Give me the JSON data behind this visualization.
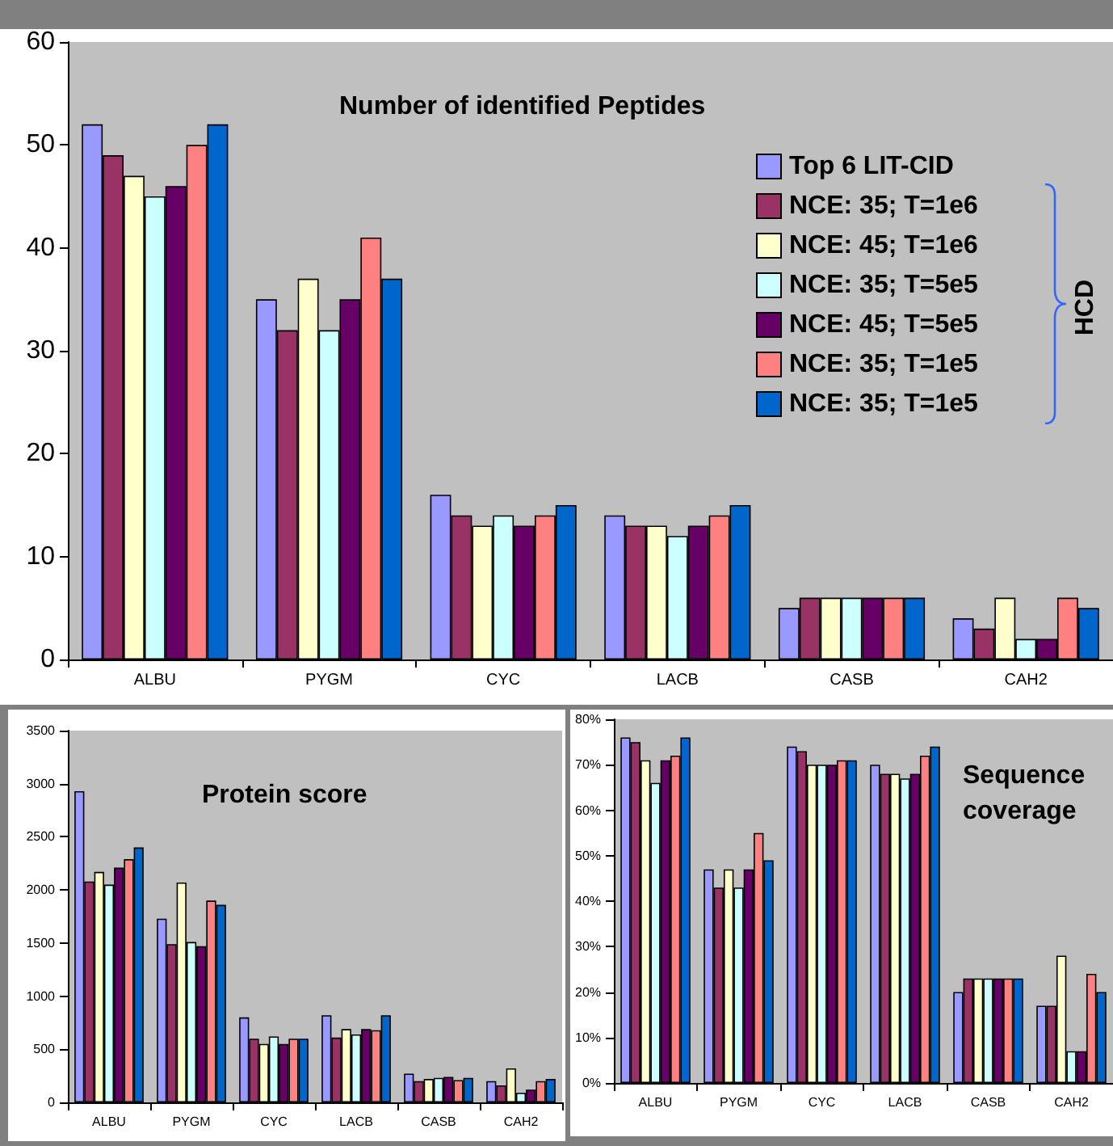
{
  "chart_data": [
    {
      "type": "bar",
      "title": "Number of identified Peptides",
      "categories": [
        "ALBU",
        "PYGM",
        "CYC",
        "LACB",
        "CASB",
        "CAH2"
      ],
      "ylim": [
        0,
        60
      ],
      "yticks": [
        0,
        10,
        20,
        30,
        40,
        50,
        60
      ],
      "grid": false,
      "legend": "top right",
      "annotations": [
        "HCD"
      ],
      "series": [
        {
          "name": "Top 6 LIT-CID",
          "color": "#9999ff",
          "values": [
            52,
            35,
            16,
            14,
            5,
            4
          ]
        },
        {
          "name": "NCE: 35; T=1e6",
          "color": "#993366",
          "values": [
            49,
            32,
            14,
            13,
            6,
            3
          ]
        },
        {
          "name": "NCE: 45; T=1e6",
          "color": "#ffffcc",
          "values": [
            47,
            37,
            13,
            13,
            6,
            6
          ]
        },
        {
          "name": "NCE: 35; T=5e5",
          "color": "#ccffff",
          "values": [
            45,
            32,
            14,
            12,
            6,
            2
          ]
        },
        {
          "name": "NCE: 45; T=5e5",
          "color": "#660066",
          "values": [
            46,
            35,
            13,
            13,
            6,
            2
          ]
        },
        {
          "name": "NCE: 35; T=1e5",
          "color": "#ff8080",
          "values": [
            50,
            41,
            14,
            14,
            6,
            6
          ]
        },
        {
          "name": "NCE: 35; T=1e5",
          "color": "#0066cc",
          "values": [
            52,
            37,
            15,
            15,
            6,
            5
          ]
        }
      ]
    },
    {
      "type": "bar",
      "title": "Protein score",
      "categories": [
        "ALBU",
        "PYGM",
        "CYC",
        "LACB",
        "CASB",
        "CAH2"
      ],
      "ylim": [
        0,
        3500
      ],
      "yticks": [
        0,
        500,
        1000,
        1500,
        2000,
        2500,
        3000,
        3500
      ],
      "grid": false,
      "legend": false,
      "series": [
        {
          "color": "#9999ff",
          "values": [
            2930,
            1730,
            800,
            820,
            270,
            200
          ]
        },
        {
          "color": "#993366",
          "values": [
            2080,
            1490,
            600,
            610,
            200,
            160
          ]
        },
        {
          "color": "#ffffcc",
          "values": [
            2170,
            2070,
            550,
            690,
            220,
            320
          ]
        },
        {
          "color": "#ccffff",
          "values": [
            2050,
            1510,
            620,
            640,
            230,
            90
          ]
        },
        {
          "color": "#660066",
          "values": [
            2210,
            1470,
            550,
            690,
            240,
            120
          ]
        },
        {
          "color": "#ff8080",
          "values": [
            2290,
            1900,
            600,
            680,
            210,
            200
          ]
        },
        {
          "color": "#0066cc",
          "values": [
            2400,
            1860,
            600,
            820,
            230,
            220
          ]
        }
      ]
    },
    {
      "type": "bar",
      "title": "Sequence coverage",
      "categories": [
        "ALBU",
        "PYGM",
        "CYC",
        "LACB",
        "CASB",
        "CAH2"
      ],
      "ylim": [
        0,
        80
      ],
      "yticks": [
        {
          "value": 0,
          "label": "0%"
        },
        {
          "value": 10,
          "label": "10%"
        },
        {
          "value": 20,
          "label": "20%"
        },
        {
          "value": 30,
          "label": "30%"
        },
        {
          "value": 40,
          "label": "40%"
        },
        {
          "value": 50,
          "label": "50%"
        },
        {
          "value": 60,
          "label": "60%"
        },
        {
          "value": 70,
          "label": "70%"
        },
        {
          "value": 80,
          "label": "80%"
        }
      ],
      "grid": false,
      "legend": false,
      "series": [
        {
          "color": "#9999ff",
          "values": [
            76,
            47,
            74,
            70,
            20,
            17
          ]
        },
        {
          "color": "#993366",
          "values": [
            75,
            43,
            73,
            68,
            23,
            17
          ]
        },
        {
          "color": "#ffffcc",
          "values": [
            71,
            47,
            70,
            68,
            23,
            28
          ]
        },
        {
          "color": "#ccffff",
          "values": [
            66,
            43,
            70,
            67,
            23,
            7
          ]
        },
        {
          "color": "#660066",
          "values": [
            71,
            47,
            70,
            68,
            23,
            7
          ]
        },
        {
          "color": "#ff8080",
          "values": [
            72,
            55,
            71,
            72,
            23,
            24
          ]
        },
        {
          "color": "#0066cc",
          "values": [
            76,
            49,
            71,
            74,
            23,
            20
          ]
        }
      ]
    }
  ]
}
